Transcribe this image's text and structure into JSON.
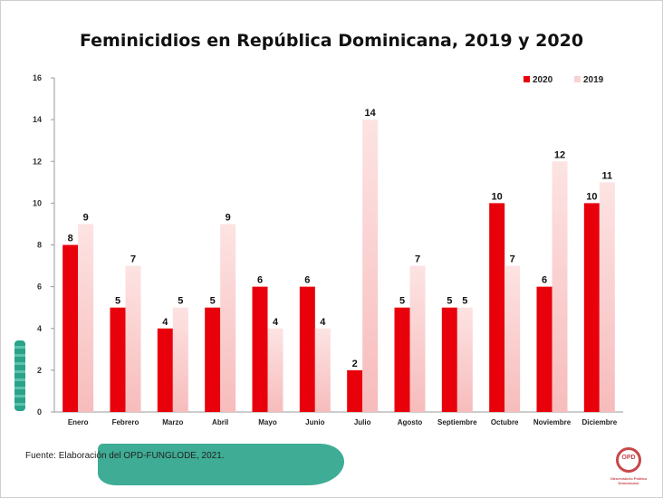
{
  "chart_data": {
    "type": "bar",
    "title": "Feminicidios en República Dominicana, 2019 y 2020",
    "categories": [
      "Enero",
      "Febrero",
      "Marzo",
      "Abril",
      "Mayo",
      "Junio",
      "Julio",
      "Agosto",
      "Septiembre",
      "Octubre",
      "Noviembre",
      "Diciembre"
    ],
    "series": [
      {
        "name": "2020",
        "color": "#e8000b",
        "values": [
          8,
          5,
          4,
          5,
          6,
          6,
          2,
          5,
          5,
          10,
          6,
          10
        ]
      },
      {
        "name": "2019",
        "color": "#f9c9c9",
        "values": [
          9,
          7,
          5,
          9,
          4,
          4,
          14,
          7,
          5,
          7,
          12,
          11
        ]
      }
    ],
    "ylim": [
      0,
      16
    ],
    "yticks": [
      0,
      2,
      4,
      6,
      8,
      10,
      12,
      14,
      16
    ],
    "grid": false,
    "legend": "top-right"
  },
  "source_text": "Fuente: Elaboración del OPD-FUNGLODE, 2021.",
  "logo": {
    "text": "OPD",
    "caption": "Observatorio Político Dominicano"
  }
}
